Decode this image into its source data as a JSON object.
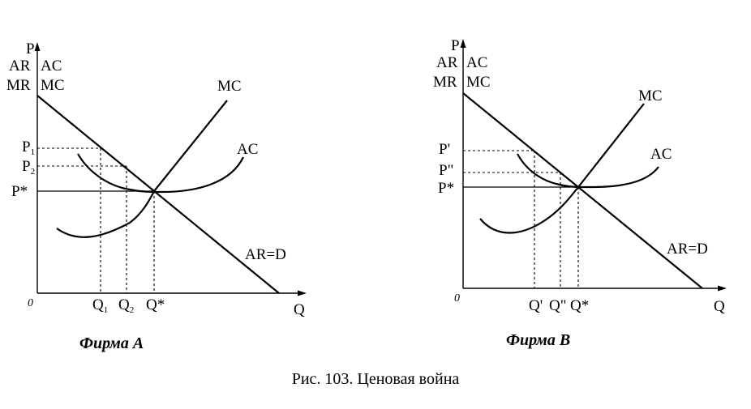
{
  "figure": {
    "caption": "Рис. 103. Ценовая война",
    "panels": [
      {
        "title": "Фирма A",
        "origin": "0",
        "y_axis": {
          "top": "P",
          "line1_left": "AR",
          "line1_right": "AC",
          "line2_left": "MR",
          "line2_right": "MC"
        },
        "x_axis": "Q",
        "price_labels": [
          {
            "main": "P",
            "sub": "1"
          },
          {
            "main": "P",
            "sub": "2"
          },
          {
            "main": "P*",
            "sub": ""
          }
        ],
        "quantity_labels": [
          {
            "main": "Q",
            "sub": "1"
          },
          {
            "main": "Q",
            "sub": "2"
          },
          {
            "main": "Q*",
            "sub": ""
          }
        ],
        "curves": {
          "mc": "MC",
          "ac": "AC",
          "demand": "AR=D"
        }
      },
      {
        "title": "Фирма B",
        "origin": "0",
        "y_axis": {
          "top": "P",
          "line1_left": "AR",
          "line1_right": "AC",
          "line2_left": "MR",
          "line2_right": "MC"
        },
        "x_axis": "Q",
        "price_labels": [
          {
            "main": "P'",
            "sub": ""
          },
          {
            "main": "P\"",
            "sub": ""
          },
          {
            "main": "P*",
            "sub": ""
          }
        ],
        "quantity_labels": [
          {
            "main": "Q'",
            "sub": ""
          },
          {
            "main": "Q\"",
            "sub": ""
          },
          {
            "main": "Q*",
            "sub": ""
          }
        ],
        "curves": {
          "mc": "MC",
          "ac": "AC",
          "demand": "AR=D"
        }
      }
    ]
  }
}
